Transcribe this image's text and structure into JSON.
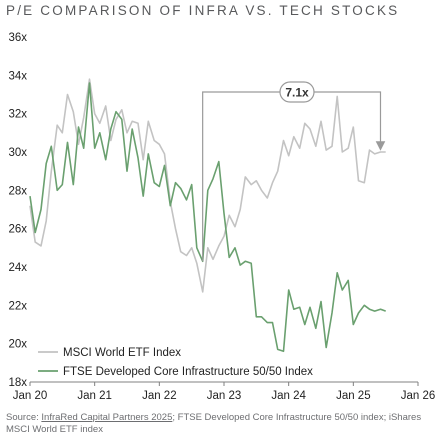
{
  "title": "P/E COMPARISON OF INFRA VS. TECH STOCKS",
  "annotation": "7.1x",
  "source": {
    "prefix": "Source: ",
    "link": "InfraRed Capital Partners 2025",
    "rest": "; FTSE Developed Core Infrastructure 50/50 index; iShares MSCI World ETF index"
  },
  "colors": {
    "msci": "#c3c3c3",
    "ftse": "#6aa06f",
    "axis": "#808080",
    "text": "#222222",
    "callout": "#9a9a9a"
  },
  "chart_data": {
    "type": "line",
    "title": "P/E COMPARISON OF INFRA VS. TECH STOCKS",
    "xlim": [
      2020.0,
      2026.0
    ],
    "ylim": [
      18,
      36
    ],
    "x_ticks": [
      2020,
      2021,
      2022,
      2023,
      2024,
      2025,
      2026
    ],
    "x_tick_labels": [
      "Jan 20",
      "Jan 21",
      "Jan 22",
      "Jan 23",
      "Jan 24",
      "Jan 25",
      "Jan 26"
    ],
    "y_ticks": [
      18,
      20,
      22,
      24,
      26,
      28,
      30,
      32,
      34,
      36
    ],
    "y_tick_labels": [
      "18x",
      "20x",
      "22x",
      "24x",
      "26x",
      "28x",
      "30x",
      "32x",
      "34x",
      "36x"
    ],
    "legend_position": "bottom-left",
    "series": [
      {
        "name": "MSCI World ETF Index",
        "x": [
          2020.0,
          2020.08,
          2020.17,
          2020.25,
          2020.33,
          2020.42,
          2020.5,
          2020.58,
          2020.67,
          2020.75,
          2020.83,
          2020.92,
          2021.0,
          2021.08,
          2021.17,
          2021.25,
          2021.33,
          2021.42,
          2021.5,
          2021.58,
          2021.67,
          2021.75,
          2021.83,
          2021.92,
          2022.0,
          2022.08,
          2022.17,
          2022.25,
          2022.33,
          2022.42,
          2022.5,
          2022.58,
          2022.67,
          2022.75,
          2022.83,
          2022.92,
          2023.0,
          2023.08,
          2023.17,
          2023.25,
          2023.33,
          2023.42,
          2023.5,
          2023.58,
          2023.67,
          2023.75,
          2023.83,
          2023.92,
          2024.0,
          2024.08,
          2024.17,
          2024.25,
          2024.33,
          2024.42,
          2024.5,
          2024.58,
          2024.67,
          2024.75,
          2024.83,
          2024.92,
          2025.0,
          2025.08,
          2025.17,
          2025.25,
          2025.33,
          2025.42,
          2025.5
        ],
        "values": [
          27.2,
          25.3,
          25.1,
          26.4,
          29.0,
          31.4,
          31.0,
          33.0,
          32.1,
          30.4,
          31.8,
          33.8,
          32.0,
          31.5,
          32.4,
          30.6,
          31.7,
          32.2,
          31.0,
          31.6,
          31.5,
          29.6,
          31.6,
          30.6,
          30.4,
          29.9,
          27.4,
          26.0,
          24.8,
          24.6,
          25.0,
          24.2,
          22.7,
          25.0,
          24.4,
          25.1,
          25.6,
          26.7,
          26.1,
          27.0,
          28.7,
          28.3,
          28.5,
          28.0,
          27.6,
          28.4,
          29.0,
          30.6,
          29.8,
          30.8,
          30.2,
          31.5,
          31.2,
          30.3,
          31.6,
          30.1,
          30.3,
          32.9,
          30.0,
          30.2,
          31.3,
          28.5,
          28.4,
          30.1,
          29.9,
          30.0,
          30.0
        ]
      },
      {
        "name": "FTSE Developed Core Infrastructure 50/50 Index",
        "x": [
          2020.0,
          2020.08,
          2020.17,
          2020.25,
          2020.33,
          2020.42,
          2020.5,
          2020.58,
          2020.67,
          2020.75,
          2020.83,
          2020.92,
          2021.0,
          2021.08,
          2021.17,
          2021.25,
          2021.33,
          2021.42,
          2021.5,
          2021.58,
          2021.67,
          2021.75,
          2021.83,
          2021.92,
          2022.0,
          2022.08,
          2022.17,
          2022.25,
          2022.33,
          2022.42,
          2022.5,
          2022.58,
          2022.67,
          2022.75,
          2022.83,
          2022.92,
          2023.0,
          2023.08,
          2023.17,
          2023.25,
          2023.33,
          2023.42,
          2023.5,
          2023.58,
          2023.67,
          2023.75,
          2023.83,
          2023.92,
          2024.0,
          2024.08,
          2024.17,
          2024.25,
          2024.33,
          2024.42,
          2024.5,
          2024.58,
          2024.67,
          2024.75,
          2024.83,
          2024.92,
          2025.0,
          2025.08,
          2025.17,
          2025.25,
          2025.33,
          2025.42,
          2025.5
        ],
        "values": [
          27.7,
          25.8,
          27.0,
          29.4,
          30.3,
          28.0,
          28.3,
          30.5,
          28.3,
          31.3,
          30.2,
          33.6,
          30.2,
          31.0,
          29.6,
          31.2,
          32.1,
          31.7,
          29.0,
          31.2,
          29.7,
          27.7,
          29.9,
          28.4,
          28.2,
          29.3,
          27.2,
          28.4,
          28.1,
          27.5,
          28.3,
          25.0,
          24.3,
          28.0,
          28.6,
          29.5,
          26.8,
          24.5,
          25.0,
          24.1,
          24.3,
          24.2,
          21.4,
          21.4,
          21.1,
          21.1,
          19.7,
          19.6,
          22.8,
          21.8,
          21.9,
          21.0,
          21.9,
          20.8,
          22.2,
          19.8,
          21.6,
          23.7,
          22.8,
          23.3,
          21.0,
          21.6,
          22.0,
          21.8,
          21.7,
          21.8,
          21.7
        ]
      }
    ],
    "annotation": {
      "text": "7.1x",
      "from_x": 2022.67,
      "to_x": 2025.42
    }
  }
}
